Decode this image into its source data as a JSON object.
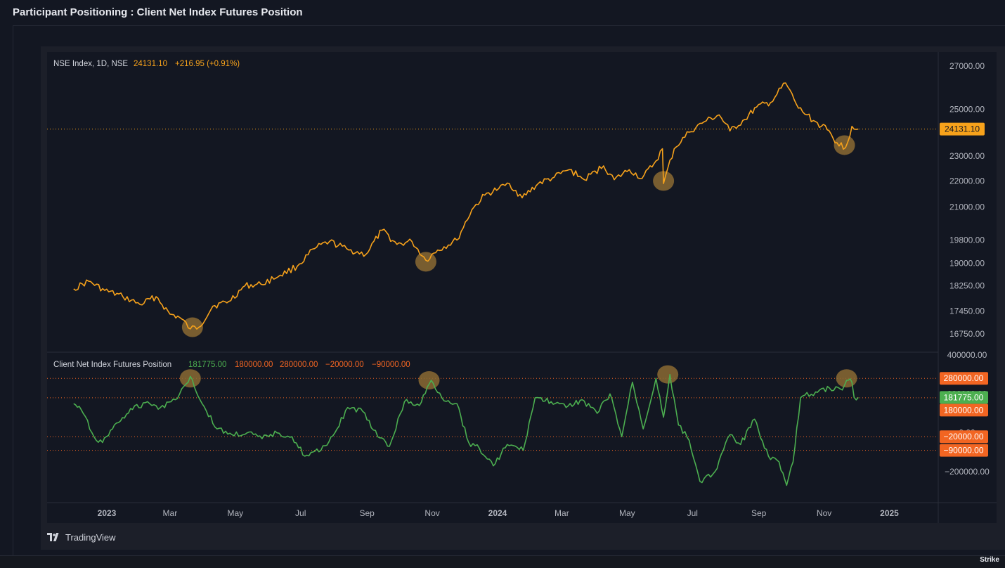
{
  "page_title": "Participant Positioning : Client Net Index Futures Position",
  "branding": {
    "tradingview": "TradingView",
    "watermark": "Strike"
  },
  "colors": {
    "background": "#131722",
    "pane_bg": "#131722",
    "price_line": "#f7a21b",
    "indicator_line": "#4caf50",
    "level_line": "#f26522",
    "highlight": "#8b6a32"
  },
  "chart_data": [
    {
      "type": "line",
      "legend": {
        "symbol": "NSE Index, 1D, NSE",
        "last": "24131.10",
        "change": "+216.95 (+0.91%)"
      },
      "x_tick_labels": [
        "2023",
        "Mar",
        "May",
        "Jul",
        "Sep",
        "Nov",
        "2024",
        "Mar",
        "May",
        "Jul",
        "Sep",
        "Nov",
        "2025"
      ],
      "y_tick_labels": [
        "27000.00",
        "25000.00",
        "23000.00",
        "22000.00",
        "21000.00",
        "19800.00",
        "19000.00",
        "18250.00",
        "17450.00",
        "16750.00"
      ],
      "y_scale": "log",
      "ylim": [
        16400,
        27600
      ],
      "last_value_label": "24131.10",
      "series": [
        {
          "points": [
            [
              "2022-12-01",
              18150
            ],
            [
              "2022-12-15",
              18400
            ],
            [
              "2022-12-30",
              18100
            ],
            [
              "2023-01-16",
              17900
            ],
            [
              "2023-02-01",
              17650
            ],
            [
              "2023-02-16",
              17900
            ],
            [
              "2023-03-01",
              17350
            ],
            [
              "2023-03-10",
              17250
            ],
            [
              "2023-03-20",
              16900
            ],
            [
              "2023-03-28",
              16950
            ],
            [
              "2023-04-10",
              17600
            ],
            [
              "2023-04-25",
              17750
            ],
            [
              "2023-05-10",
              18250
            ],
            [
              "2023-05-25",
              18300
            ],
            [
              "2023-06-12",
              18600
            ],
            [
              "2023-06-28",
              18900
            ],
            [
              "2023-07-14",
              19500
            ],
            [
              "2023-07-28",
              19750
            ],
            [
              "2023-08-15",
              19450
            ],
            [
              "2023-08-31",
              19300
            ],
            [
              "2023-09-15",
              20150
            ],
            [
              "2023-09-29",
              19650
            ],
            [
              "2023-10-13",
              19750
            ],
            [
              "2023-10-26",
              19100
            ],
            [
              "2023-11-06",
              19450
            ],
            [
              "2023-11-24",
              19800
            ],
            [
              "2023-12-08",
              20900
            ],
            [
              "2023-12-20",
              21450
            ],
            [
              "2024-01-02",
              21700
            ],
            [
              "2024-01-12",
              21900
            ],
            [
              "2024-01-24",
              21350
            ],
            [
              "2024-02-08",
              21900
            ],
            [
              "2024-02-23",
              22150
            ],
            [
              "2024-03-08",
              22450
            ],
            [
              "2024-03-22",
              22050
            ],
            [
              "2024-04-09",
              22600
            ],
            [
              "2024-04-19",
              22050
            ],
            [
              "2024-05-03",
              22450
            ],
            [
              "2024-05-15",
              22100
            ],
            [
              "2024-05-28",
              22800
            ],
            [
              "2024-06-03",
              23300
            ],
            [
              "2024-06-04",
              21900
            ],
            [
              "2024-06-14",
              23300
            ],
            [
              "2024-06-28",
              24000
            ],
            [
              "2024-07-12",
              24450
            ],
            [
              "2024-07-26",
              24750
            ],
            [
              "2024-08-05",
              24050
            ],
            [
              "2024-08-19",
              24550
            ],
            [
              "2024-08-30",
              25100
            ],
            [
              "2024-09-12",
              25300
            ],
            [
              "2024-09-26",
              26200
            ],
            [
              "2024-10-08",
              25050
            ],
            [
              "2024-10-22",
              24500
            ],
            [
              "2024-11-04",
              24100
            ],
            [
              "2024-11-13",
              23550
            ],
            [
              "2024-11-21",
              23350
            ],
            [
              "2024-11-27",
              24250
            ],
            [
              "2024-12-03",
              24131.1
            ]
          ]
        }
      ],
      "annotations": [
        {
          "type": "circle",
          "x": "2023-03-22",
          "y": 16950
        },
        {
          "type": "circle",
          "x": "2023-10-26",
          "y": 19050
        },
        {
          "type": "circle",
          "x": "2024-06-04",
          "y": 22000
        },
        {
          "type": "circle",
          "x": "2024-11-20",
          "y": 23450
        }
      ]
    },
    {
      "type": "line",
      "legend": {
        "name": "Client Net Index Futures Position",
        "values": [
          "181775.00",
          "180000.00",
          "280000.00",
          "−20000.00",
          "−90000.00"
        ]
      },
      "y_tick_labels": [
        "400000.00",
        "200000.00",
        "0.00",
        "−200000.00"
      ],
      "ylim": [
        -360000,
        410000
      ],
      "levels": [
        {
          "value": 280000,
          "label": "280000.00"
        },
        {
          "value": 180000,
          "label": "180000.00"
        },
        {
          "value": -20000,
          "label": "−20000.00"
        },
        {
          "value": -90000,
          "label": "−90000.00"
        }
      ],
      "last_value_label": "181775.00",
      "series": [
        {
          "points": [
            [
              "2022-12-01",
              150000
            ],
            [
              "2022-12-08",
              120000
            ],
            [
              "2022-12-20",
              -20000
            ],
            [
              "2022-12-28",
              -50000
            ],
            [
              "2023-01-10",
              50000
            ],
            [
              "2023-01-25",
              120000
            ],
            [
              "2023-02-08",
              160000
            ],
            [
              "2023-02-20",
              130000
            ],
            [
              "2023-03-02",
              160000
            ],
            [
              "2023-03-10",
              200000
            ],
            [
              "2023-03-20",
              290000
            ],
            [
              "2023-03-31",
              150000
            ],
            [
              "2023-04-14",
              20000
            ],
            [
              "2023-04-28",
              -10000
            ],
            [
              "2023-05-12",
              0
            ],
            [
              "2023-05-26",
              -30000
            ],
            [
              "2023-06-09",
              0
            ],
            [
              "2023-06-23",
              -20000
            ],
            [
              "2023-07-05",
              -120000
            ],
            [
              "2023-07-20",
              -90000
            ],
            [
              "2023-08-02",
              0
            ],
            [
              "2023-08-14",
              130000
            ],
            [
              "2023-08-28",
              110000
            ],
            [
              "2023-09-11",
              -20000
            ],
            [
              "2023-09-22",
              -70000
            ],
            [
              "2023-10-06",
              160000
            ],
            [
              "2023-10-20",
              140000
            ],
            [
              "2023-10-31",
              270000
            ],
            [
              "2023-11-10",
              180000
            ],
            [
              "2023-11-24",
              150000
            ],
            [
              "2023-12-05",
              -50000
            ],
            [
              "2023-12-15",
              -80000
            ],
            [
              "2023-12-28",
              -170000
            ],
            [
              "2024-01-10",
              -60000
            ],
            [
              "2024-01-25",
              -90000
            ],
            [
              "2024-02-05",
              180000
            ],
            [
              "2024-02-20",
              160000
            ],
            [
              "2024-03-05",
              130000
            ],
            [
              "2024-03-20",
              170000
            ],
            [
              "2024-04-03",
              100000
            ],
            [
              "2024-04-15",
              200000
            ],
            [
              "2024-04-26",
              -20000
            ],
            [
              "2024-05-06",
              260000
            ],
            [
              "2024-05-16",
              20000
            ],
            [
              "2024-05-28",
              280000
            ],
            [
              "2024-06-04",
              80000
            ],
            [
              "2024-06-10",
              300000
            ],
            [
              "2024-06-18",
              40000
            ],
            [
              "2024-06-28",
              -40000
            ],
            [
              "2024-07-08",
              -250000
            ],
            [
              "2024-07-22",
              -200000
            ],
            [
              "2024-08-05",
              -10000
            ],
            [
              "2024-08-15",
              -60000
            ],
            [
              "2024-08-28",
              70000
            ],
            [
              "2024-09-10",
              -120000
            ],
            [
              "2024-09-20",
              -150000
            ],
            [
              "2024-09-27",
              -270000
            ],
            [
              "2024-10-03",
              -150000
            ],
            [
              "2024-10-10",
              180000
            ],
            [
              "2024-10-24",
              210000
            ],
            [
              "2024-11-06",
              230000
            ],
            [
              "2024-11-18",
              220000
            ],
            [
              "2024-11-22",
              270000
            ],
            [
              "2024-11-27",
              260000
            ],
            [
              "2024-11-29",
              181775
            ],
            [
              "2024-12-03",
              181775
            ]
          ]
        }
      ],
      "annotations": [
        {
          "type": "circle",
          "x": "2023-03-20",
          "y": 280000
        },
        {
          "type": "circle",
          "x": "2023-10-29",
          "y": 270000
        },
        {
          "type": "circle",
          "x": "2024-06-08",
          "y": 300000
        },
        {
          "type": "circle",
          "x": "2024-11-22",
          "y": 280000
        }
      ]
    }
  ]
}
